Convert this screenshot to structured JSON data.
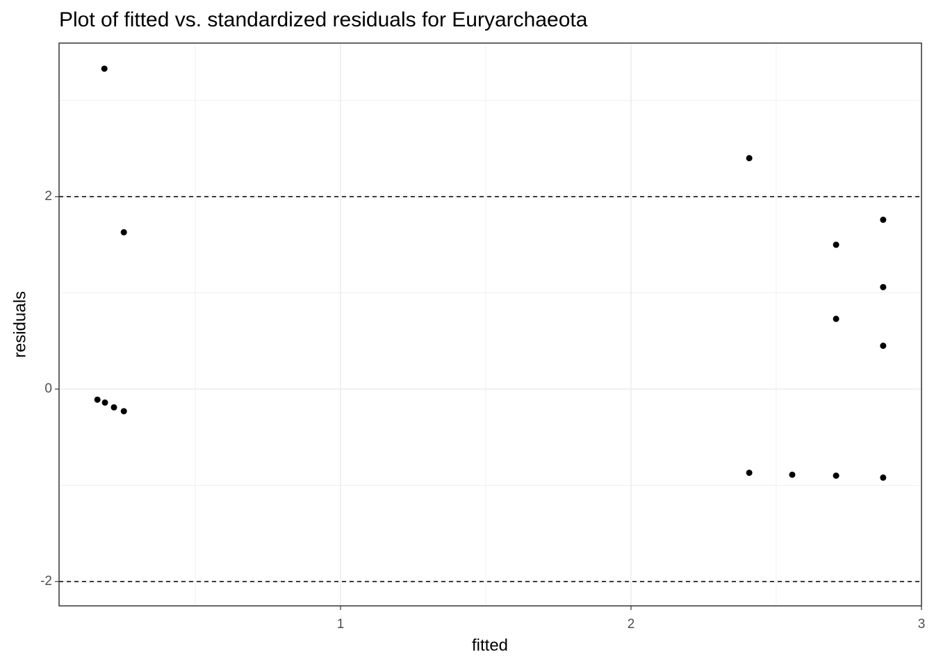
{
  "chart_data": {
    "type": "scatter",
    "title": "Plot of fitted vs. standardized residuals for Euryarchaeota",
    "x_label": "fitted",
    "y_label": "residuals",
    "x": [
      0.187,
      0.254,
      0.163,
      0.189,
      0.22,
      0.254,
      2.407,
      2.868,
      2.706,
      2.868,
      2.706,
      2.868,
      2.407,
      2.555,
      2.706,
      2.868
    ],
    "values": [
      3.33,
      1.63,
      -0.11,
      -0.14,
      -0.19,
      -0.23,
      2.4,
      1.76,
      1.5,
      1.06,
      0.73,
      0.45,
      -0.87,
      -0.89,
      -0.9,
      -0.92
    ],
    "color": "#000000",
    "xlim": [
      0.031,
      3
    ],
    "xticks": [
      1,
      2,
      3
    ],
    "ylim": [
      -2.253,
      3.596
    ],
    "yticks": [
      -2,
      0,
      2
    ],
    "hlines": [
      2,
      -2
    ],
    "grid": true
  }
}
